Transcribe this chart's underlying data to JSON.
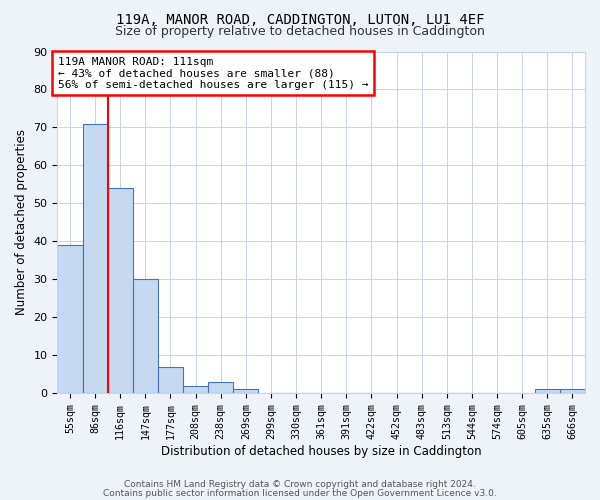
{
  "title1": "119A, MANOR ROAD, CADDINGTON, LUTON, LU1 4EF",
  "title2": "Size of property relative to detached houses in Caddington",
  "xlabel": "Distribution of detached houses by size in Caddington",
  "ylabel": "Number of detached properties",
  "bin_labels": [
    "55sqm",
    "86sqm",
    "116sqm",
    "147sqm",
    "177sqm",
    "208sqm",
    "238sqm",
    "269sqm",
    "299sqm",
    "330sqm",
    "361sqm",
    "391sqm",
    "422sqm",
    "452sqm",
    "483sqm",
    "513sqm",
    "544sqm",
    "574sqm",
    "605sqm",
    "635sqm",
    "666sqm"
  ],
  "bar_heights": [
    39,
    71,
    54,
    30,
    7,
    2,
    3,
    1,
    0,
    0,
    0,
    0,
    0,
    0,
    0,
    0,
    0,
    0,
    0,
    1,
    1
  ],
  "bar_color": "#c6d9f1",
  "bar_edge_color": "#4472c4",
  "red_line_x": 1.5,
  "annotation_title": "119A MANOR ROAD: 111sqm",
  "annotation_line1": "← 43% of detached houses are smaller (88)",
  "annotation_line2": "56% of semi-detached houses are larger (115) →",
  "ylim": [
    0,
    90
  ],
  "yticks": [
    0,
    10,
    20,
    30,
    40,
    50,
    60,
    70,
    80,
    90
  ],
  "footer1": "Contains HM Land Registry data © Crown copyright and database right 2024.",
  "footer2": "Contains public sector information licensed under the Open Government Licence v3.0.",
  "bg_color": "#eef2f9",
  "plot_bg_color": "#ffffff",
  "grid_color": "#c8d4e8"
}
